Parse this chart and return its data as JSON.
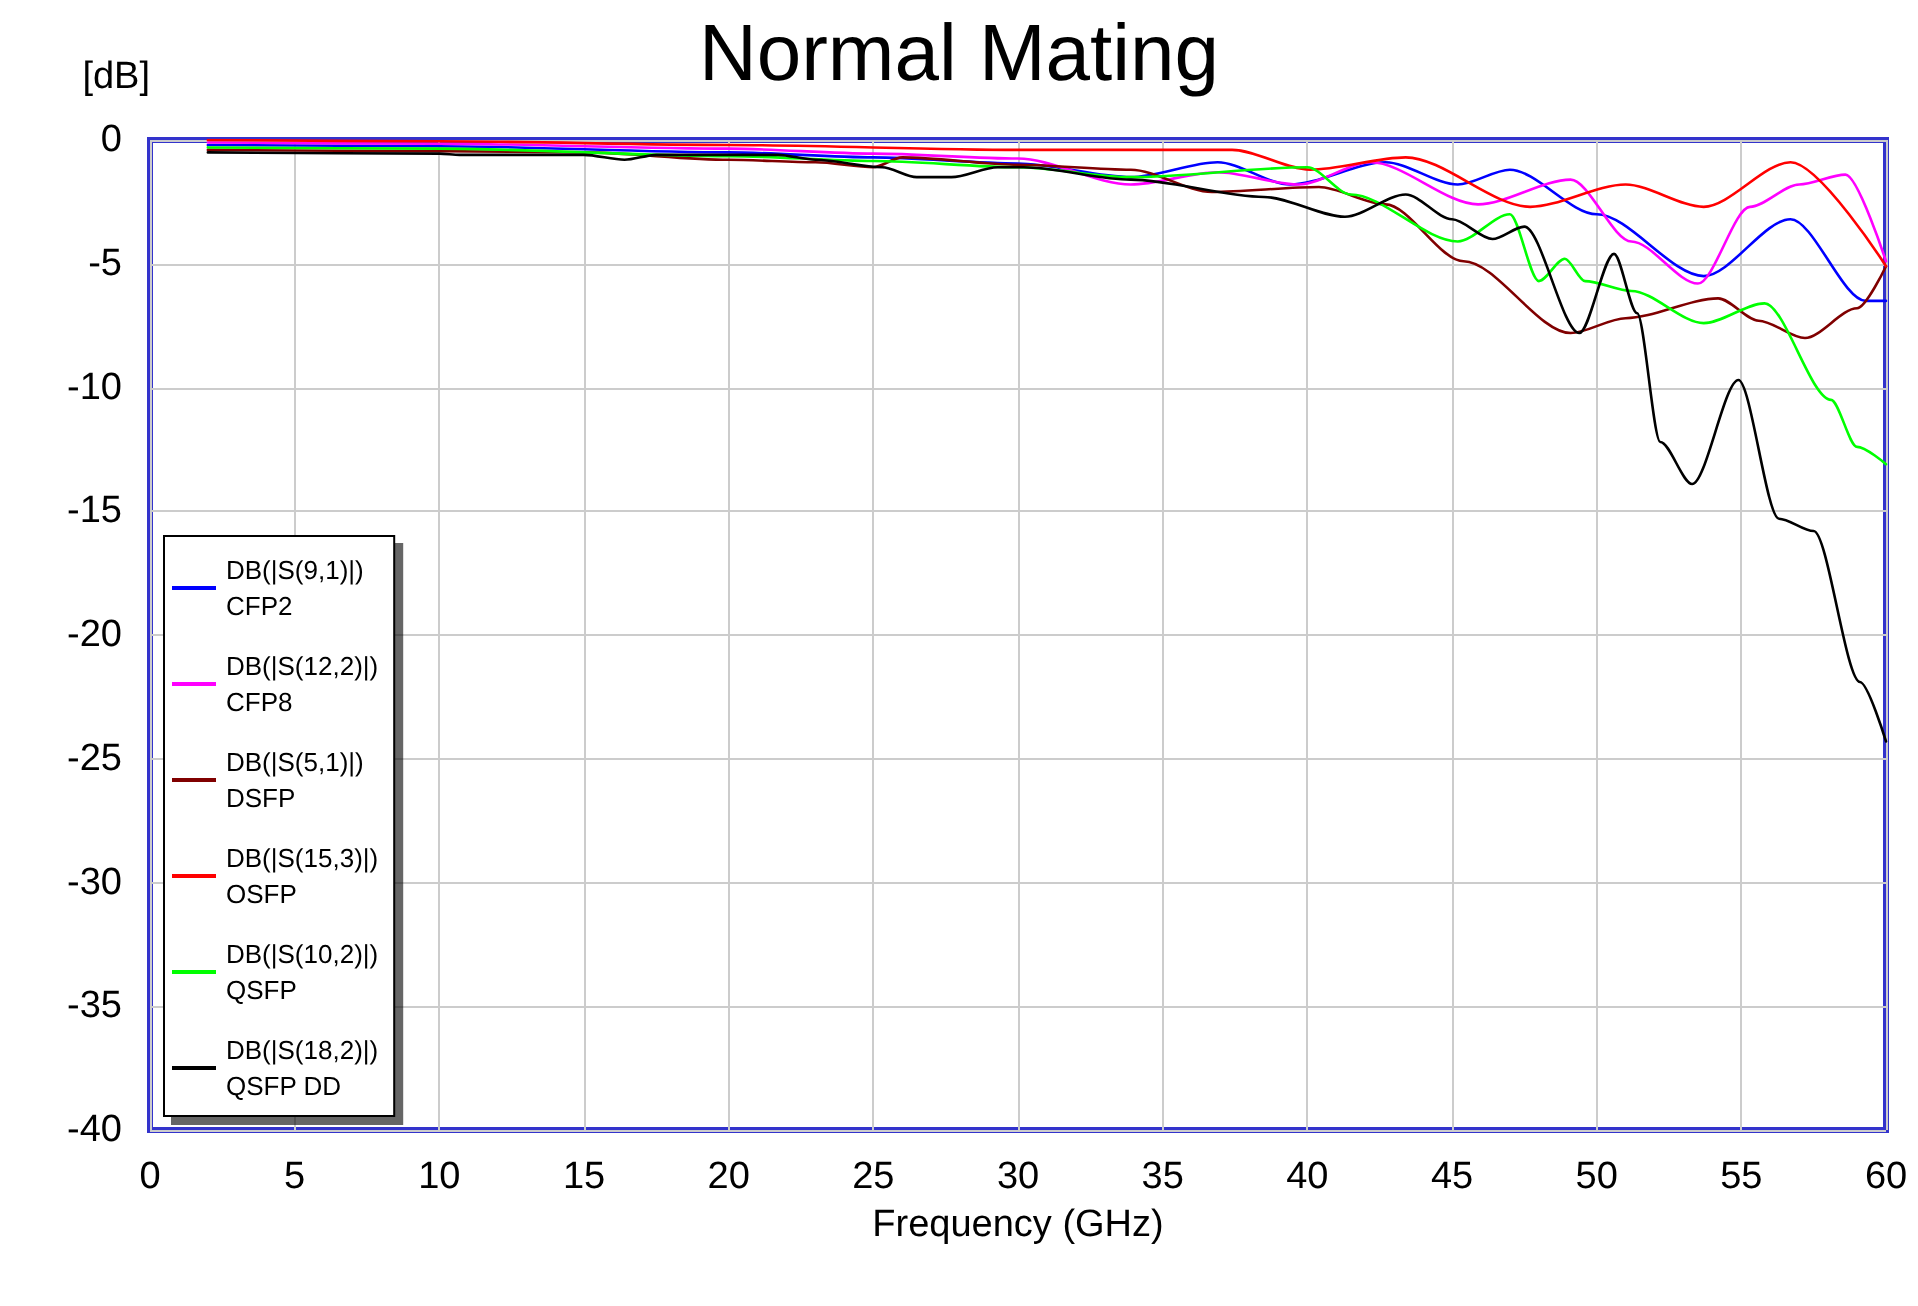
{
  "chart_data": {
    "type": "line",
    "title": "Normal Mating",
    "ylabel": "[dB]",
    "xlabel": "Frequency (GHz)",
    "xlim": [
      0,
      60
    ],
    "xticks": [
      0,
      5,
      10,
      15,
      20,
      25,
      30,
      35,
      40,
      45,
      50,
      55,
      60
    ],
    "ylim": [
      -40,
      0
    ],
    "yticks": [
      -40,
      -35,
      -30,
      -25,
      -20,
      -15,
      -10,
      -5,
      0
    ],
    "grid": true,
    "legend": "bottom left",
    "marker": "none",
    "line_style": "solid",
    "series": [
      {
        "name": "DB(|S(9,1)|)\nCFP2",
        "color": "#0000ff",
        "x": [
          2,
          10,
          20,
          25,
          30,
          33.9,
          36.9,
          39.4,
          42.7,
          45.2,
          47,
          50,
          53.7,
          56.7,
          59.3,
          60
        ],
        "values": [
          -0.2,
          -0.25,
          -0.5,
          -0.7,
          -0.95,
          -1.5,
          -0.9,
          -1.8,
          -0.9,
          -1.8,
          -1.2,
          -3,
          -5.5,
          -3.2,
          -6.5,
          -6.5
        ]
      },
      {
        "name": "DB(|S(12,2)|)\nCFP8",
        "color": "#ff00ff",
        "x": [
          2,
          10,
          20,
          25,
          30,
          33.9,
          36.9,
          39.7,
          42.2,
          45.9,
          49.1,
          51.2,
          53.5,
          55.3,
          57,
          58.6,
          60
        ],
        "values": [
          -0.1,
          -0.15,
          -0.35,
          -0.55,
          -0.75,
          -1.8,
          -1.3,
          -1.8,
          -0.9,
          -2.6,
          -1.6,
          -4.1,
          -5.8,
          -2.7,
          -1.8,
          -1.4,
          -4.9
        ]
      },
      {
        "name": "DB(|S(5,1)|)\nDSFP",
        "color": "#800000",
        "x": [
          2,
          10,
          15,
          20,
          23,
          25,
          26,
          30,
          33.9,
          36.7,
          40.4,
          42.7,
          45.4,
          49.1,
          51,
          54.2,
          55.6,
          57.2,
          59,
          60
        ],
        "values": [
          -0.4,
          -0.45,
          -0.5,
          -0.8,
          -0.9,
          -1.1,
          -0.7,
          -1,
          -1.2,
          -2.1,
          -1.9,
          -2.6,
          -4.9,
          -7.8,
          -7.2,
          -6.4,
          -7.3,
          -8,
          -6.8,
          -5.1
        ]
      },
      {
        "name": "DB(|S(15,3)|)\nOSFP",
        "color": "#ff0000",
        "x": [
          2,
          10,
          20,
          30,
          37.4,
          40.1,
          43.4,
          47.7,
          51,
          53.7,
          56.7,
          60
        ],
        "values": [
          0,
          -0.05,
          -0.2,
          -0.4,
          -0.4,
          -1.2,
          -0.7,
          -2.7,
          -1.8,
          -2.7,
          -0.9,
          -5.1
        ]
      },
      {
        "name": "DB(|S(10,2)|)\nQSFP",
        "color": "#00ff00",
        "x": [
          2,
          10,
          20,
          25,
          30,
          33.9,
          40,
          41.5,
          45.2,
          47,
          48,
          48.9,
          49.6,
          51.2,
          53.7,
          55.8,
          58.1,
          59,
          60
        ],
        "values": [
          -0.3,
          -0.35,
          -0.65,
          -0.85,
          -1.1,
          -1.5,
          -1.1,
          -2.2,
          -4.1,
          -3,
          -5.7,
          -4.8,
          -5.7,
          -6.1,
          -7.4,
          -6.6,
          -10.5,
          -12.4,
          -13.1
        ]
      },
      {
        "name": "DB(|S(18,2)|)\nQSFP DD",
        "color": "#000000",
        "x": [
          2,
          10,
          10.7,
          15,
          16.4,
          17.5,
          20,
          21.7,
          23,
          25.3,
          26.5,
          27.7,
          29.3,
          30.2,
          33.9,
          38.5,
          41.3,
          43.4,
          45,
          46.4,
          47.5,
          49.4,
          50.6,
          51.4,
          52.2,
          53.3,
          54.9,
          56.3,
          57.5,
          59.1,
          60
        ],
        "values": [
          -0.5,
          -0.55,
          -0.6,
          -0.6,
          -0.8,
          -0.6,
          -0.6,
          -0.6,
          -0.8,
          -1.1,
          -1.5,
          -1.5,
          -1.1,
          -1.1,
          -1.6,
          -2.3,
          -3.1,
          -2.2,
          -3.2,
          -4,
          -3.5,
          -7.8,
          -4.6,
          -7,
          -12.2,
          -13.9,
          -9.7,
          -15.3,
          -15.8,
          -21.9,
          -24.3
        ]
      }
    ]
  }
}
